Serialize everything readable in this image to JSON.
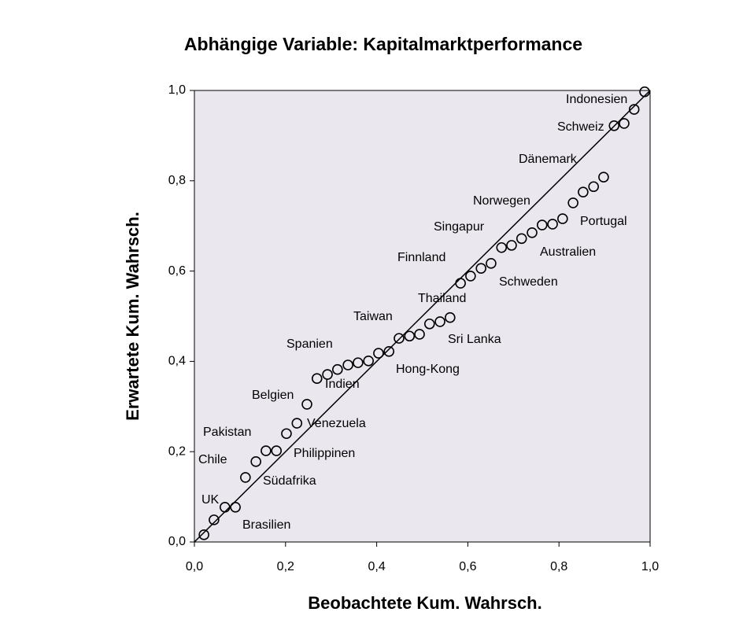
{
  "chart_data": {
    "type": "scatter",
    "title": "Abhängige Variable: Kapitalmarktperformance",
    "x_label": "Beobachtete Kum. Wahrsch.",
    "y_label": "Erwartete Kum. Wahrsch.",
    "xlim": [
      0,
      1
    ],
    "ylim": [
      0,
      1
    ],
    "xticks": [
      {
        "value": 0,
        "label": "0,0"
      },
      {
        "value": 0.2,
        "label": "0,2"
      },
      {
        "value": 0.4,
        "label": "0,4"
      },
      {
        "value": 0.6,
        "label": "0,6"
      },
      {
        "value": 0.8,
        "label": "0,8"
      },
      {
        "value": 1,
        "label": "1,0"
      }
    ],
    "yticks": [
      {
        "value": 0,
        "label": "0,0"
      },
      {
        "value": 0.2,
        "label": "0,2"
      },
      {
        "value": 0.4,
        "label": "0,4"
      },
      {
        "value": 0.6,
        "label": "0,6"
      },
      {
        "value": 0.8,
        "label": "0,8"
      },
      {
        "value": 1,
        "label": "1,0"
      }
    ],
    "grid": false,
    "series": [
      {
        "color": "#000000",
        "x": [
          0.021,
          0.043,
          0.067,
          0.09,
          0.112,
          0.135,
          0.157,
          0.18,
          0.202,
          0.225,
          0.247,
          0.269,
          0.292,
          0.314,
          0.337,
          0.359,
          0.382,
          0.404,
          0.427,
          0.449,
          0.472,
          0.494,
          0.516,
          0.539,
          0.561,
          0.584,
          0.606,
          0.629,
          0.651,
          0.674,
          0.696,
          0.718,
          0.741,
          0.763,
          0.786,
          0.808,
          0.831,
          0.853,
          0.876,
          0.898,
          0.921,
          0.943,
          0.965,
          0.988
        ],
        "values": [
          0.016,
          0.049,
          0.077,
          0.077,
          0.143,
          0.178,
          0.202,
          0.202,
          0.24,
          0.263,
          0.305,
          0.362,
          0.371,
          0.382,
          0.392,
          0.397,
          0.401,
          0.418,
          0.422,
          0.451,
          0.456,
          0.46,
          0.483,
          0.488,
          0.497,
          0.573,
          0.589,
          0.606,
          0.617,
          0.652,
          0.657,
          0.672,
          0.685,
          0.702,
          0.704,
          0.716,
          0.751,
          0.775,
          0.787,
          0.808,
          0.922,
          0.927,
          0.958,
          0.997
        ]
      }
    ],
    "annotations": [
      "Indonesien",
      "Schweiz",
      "Dänemark",
      "Norwegen",
      "Portugal",
      "Singapur",
      "Australien",
      "Finnland",
      "Schweden",
      "Thailand",
      "Taiwan",
      "Sri Lanka",
      "Spanien",
      "Hong-Kong",
      "Indien",
      "Belgien",
      "Venezuela",
      "Pakistan",
      "Philippinen",
      "Chile",
      "Südafrika",
      "UK",
      "Brasilien"
    ]
  }
}
